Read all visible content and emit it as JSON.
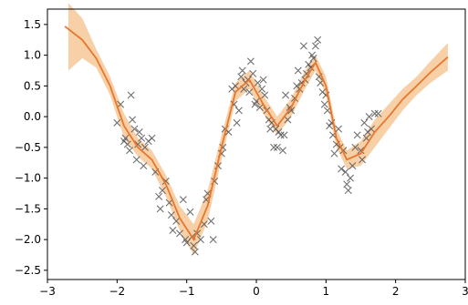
{
  "chart_data": {
    "type": "scatter",
    "title": "",
    "xlabel": "",
    "ylabel": "",
    "xlim": [
      -3.0,
      3.0
    ],
    "ylim": [
      -2.65,
      1.75
    ],
    "x_ticks": [
      -3,
      -2,
      -1,
      0,
      1,
      2,
      3
    ],
    "y_ticks": [
      -2.5,
      -2.0,
      -1.5,
      -1.0,
      -0.5,
      0.0,
      0.5,
      1.0,
      1.5
    ],
    "x_tick_labels": [
      "−3",
      "−2",
      "−1",
      "0",
      "1",
      "2",
      "3"
    ],
    "y_tick_labels": [
      "−2.5",
      "−2.0",
      "−1.5",
      "−1.0",
      "−0.5",
      "0.0",
      "0.5",
      "1.0",
      "1.5"
    ],
    "grid": false,
    "legend": "none",
    "colors": {
      "mean_line": "#e8772e",
      "band_fill": "#f5c08a",
      "markers": "#555555",
      "axes": "#000000"
    },
    "series": [
      {
        "kind": "band",
        "x": [
          -2.7,
          -2.5,
          -2.3,
          -2.1,
          -1.9,
          -1.7,
          -1.5,
          -1.3,
          -1.1,
          -0.9,
          -0.7,
          -0.5,
          -0.3,
          -0.1,
          0.1,
          0.3,
          0.5,
          0.7,
          0.85,
          1.0,
          1.15,
          1.3,
          1.5,
          1.7,
          1.9,
          2.1,
          2.3,
          2.5,
          2.75
        ],
        "upper": [
          1.85,
          1.6,
          1.1,
          0.65,
          0.05,
          -0.35,
          -0.55,
          -0.95,
          -1.45,
          -1.75,
          -1.2,
          -0.3,
          0.55,
          0.75,
          0.35,
          0.0,
          0.3,
          0.75,
          1.0,
          0.65,
          -0.2,
          -0.55,
          -0.4,
          -0.05,
          0.2,
          0.45,
          0.65,
          0.9,
          1.2
        ],
        "lower": [
          0.75,
          0.95,
          0.8,
          0.35,
          -0.35,
          -0.65,
          -0.85,
          -1.3,
          -1.85,
          -2.25,
          -1.7,
          -0.7,
          0.25,
          0.45,
          0.05,
          -0.3,
          0.0,
          0.45,
          0.75,
          0.35,
          -0.5,
          -0.85,
          -0.8,
          -0.5,
          -0.2,
          0.1,
          0.35,
          0.55,
          0.75
        ]
      },
      {
        "kind": "line",
        "x": [
          -2.75,
          -2.5,
          -2.3,
          -2.1,
          -1.9,
          -1.7,
          -1.5,
          -1.3,
          -1.1,
          -0.9,
          -0.7,
          -0.5,
          -0.3,
          -0.1,
          0.1,
          0.3,
          0.5,
          0.7,
          0.85,
          1.0,
          1.15,
          1.3,
          1.5,
          1.7,
          1.9,
          2.1,
          2.3,
          2.5,
          2.75
        ],
        "y": [
          1.47,
          1.25,
          0.95,
          0.5,
          -0.15,
          -0.5,
          -0.7,
          -1.1,
          -1.65,
          -2.0,
          -1.45,
          -0.5,
          0.4,
          0.6,
          0.2,
          -0.15,
          0.15,
          0.6,
          0.88,
          0.5,
          -0.35,
          -0.7,
          -0.6,
          -0.25,
          0.0,
          0.28,
          0.5,
          0.72,
          0.97
        ]
      },
      {
        "kind": "scatter",
        "points": [
          [
            -2.0,
            -0.1
          ],
          [
            -1.95,
            0.2
          ],
          [
            -1.9,
            -0.4
          ],
          [
            -1.88,
            -0.35
          ],
          [
            -1.85,
            -0.45
          ],
          [
            -1.82,
            -0.55
          ],
          [
            -1.8,
            0.35
          ],
          [
            -1.78,
            -0.05
          ],
          [
            -1.75,
            -0.2
          ],
          [
            -1.72,
            -0.7
          ],
          [
            -1.7,
            -0.45
          ],
          [
            -1.68,
            -0.25
          ],
          [
            -1.65,
            -0.35
          ],
          [
            -1.62,
            -0.8
          ],
          [
            -1.6,
            -0.5
          ],
          [
            -1.55,
            -0.4
          ],
          [
            -1.5,
            -0.35
          ],
          [
            -1.45,
            -0.9
          ],
          [
            -1.4,
            -1.3
          ],
          [
            -1.38,
            -1.5
          ],
          [
            -1.35,
            -1.2
          ],
          [
            -1.3,
            -1.05
          ],
          [
            -1.25,
            -1.4
          ],
          [
            -1.22,
            -1.6
          ],
          [
            -1.2,
            -1.85
          ],
          [
            -1.15,
            -1.7
          ],
          [
            -1.1,
            -1.9
          ],
          [
            -1.05,
            -1.35
          ],
          [
            -1.02,
            -2.0
          ],
          [
            -1.0,
            -2.05
          ],
          [
            -0.95,
            -1.55
          ],
          [
            -0.92,
            -1.95
          ],
          [
            -0.9,
            -2.1
          ],
          [
            -0.88,
            -2.2
          ],
          [
            -0.85,
            -1.9
          ],
          [
            -0.8,
            -2.0
          ],
          [
            -0.75,
            -1.75
          ],
          [
            -0.72,
            -1.35
          ],
          [
            -0.7,
            -1.25
          ],
          [
            -0.65,
            -1.7
          ],
          [
            -0.62,
            -2.0
          ],
          [
            -0.6,
            -1.05
          ],
          [
            -0.55,
            -0.8
          ],
          [
            -0.5,
            -0.6
          ],
          [
            -0.48,
            -0.5
          ],
          [
            -0.45,
            -0.2
          ],
          [
            -0.4,
            -0.25
          ],
          [
            -0.35,
            0.45
          ],
          [
            -0.32,
            0.2
          ],
          [
            -0.3,
            0.5
          ],
          [
            -0.28,
            -0.1
          ],
          [
            -0.25,
            0.1
          ],
          [
            -0.22,
            0.65
          ],
          [
            -0.2,
            0.75
          ],
          [
            -0.18,
            0.45
          ],
          [
            -0.15,
            0.55
          ],
          [
            -0.12,
            0.6
          ],
          [
            -0.1,
            0.4
          ],
          [
            -0.08,
            0.9
          ],
          [
            -0.05,
            0.7
          ],
          [
            -0.02,
            0.2
          ],
          [
            0.0,
            0.25
          ],
          [
            0.02,
            0.55
          ],
          [
            0.05,
            0.15
          ],
          [
            0.08,
            0.45
          ],
          [
            0.1,
            0.6
          ],
          [
            0.12,
            0.35
          ],
          [
            0.15,
            0.1
          ],
          [
            0.18,
            -0.05
          ],
          [
            0.2,
            -0.2
          ],
          [
            0.22,
            -0.1
          ],
          [
            0.25,
            -0.5
          ],
          [
            0.28,
            -0.2
          ],
          [
            0.3,
            -0.5
          ],
          [
            0.32,
            -0.25
          ],
          [
            0.35,
            -0.3
          ],
          [
            0.38,
            -0.55
          ],
          [
            0.4,
            -0.3
          ],
          [
            0.42,
            0.35
          ],
          [
            0.45,
            -0.05
          ],
          [
            0.48,
            0.15
          ],
          [
            0.5,
            0.1
          ],
          [
            0.55,
            0.3
          ],
          [
            0.58,
            0.5
          ],
          [
            0.6,
            0.75
          ],
          [
            0.62,
            0.45
          ],
          [
            0.65,
            0.55
          ],
          [
            0.68,
            1.15
          ],
          [
            0.7,
            0.6
          ],
          [
            0.72,
            0.7
          ],
          [
            0.75,
            0.85
          ],
          [
            0.78,
            0.8
          ],
          [
            0.8,
            1.0
          ],
          [
            0.82,
            0.95
          ],
          [
            0.85,
            1.15
          ],
          [
            0.88,
            1.25
          ],
          [
            0.9,
            0.65
          ],
          [
            0.92,
            0.55
          ],
          [
            0.95,
            0.4
          ],
          [
            0.98,
            0.2
          ],
          [
            1.0,
            0.35
          ],
          [
            1.02,
            0.1
          ],
          [
            1.05,
            -0.15
          ],
          [
            1.08,
            -0.1
          ],
          [
            1.1,
            -0.3
          ],
          [
            1.12,
            -0.6
          ],
          [
            1.15,
            -0.45
          ],
          [
            1.18,
            -0.2
          ],
          [
            1.2,
            -0.5
          ],
          [
            1.22,
            -0.85
          ],
          [
            1.25,
            -0.55
          ],
          [
            1.28,
            -0.9
          ],
          [
            1.3,
            -1.1
          ],
          [
            1.32,
            -1.2
          ],
          [
            1.35,
            -1.0
          ],
          [
            1.38,
            -0.8
          ],
          [
            1.42,
            -0.5
          ],
          [
            1.45,
            -0.3
          ],
          [
            1.5,
            -0.55
          ],
          [
            1.52,
            -0.7
          ],
          [
            1.55,
            -0.1
          ],
          [
            1.58,
            -0.35
          ],
          [
            1.6,
            -0.25
          ],
          [
            1.62,
            0.0
          ],
          [
            1.65,
            -0.2
          ],
          [
            1.7,
            0.05
          ],
          [
            1.75,
            0.05
          ]
        ]
      }
    ]
  }
}
